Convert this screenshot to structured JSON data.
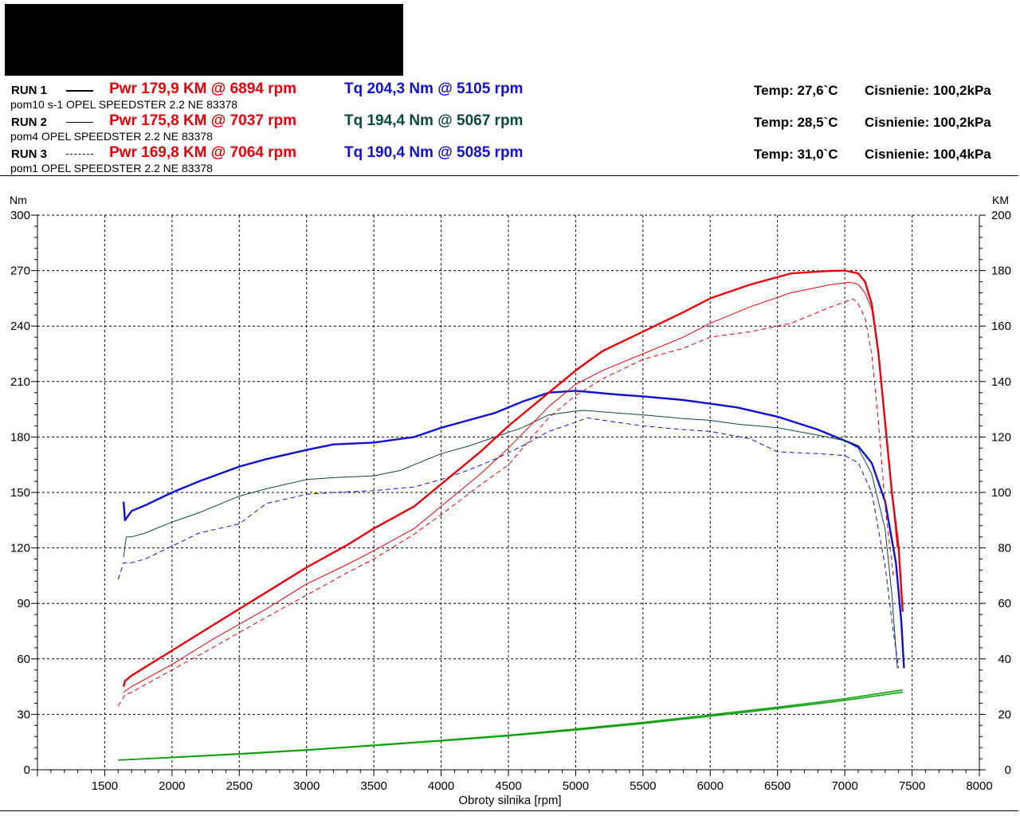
{
  "header": {
    "runs": [
      {
        "label": "RUN 1",
        "legend_style": "solid-thick",
        "pwr": "Pwr  179,9 KM @ 6894 rpm",
        "tq": "Tq 204,3 Nm @ 5105 rpm",
        "tq_color": "#1010d0",
        "temp": "Temp: 27,6`C",
        "pressure": "Cisnienie: 100,2kPa",
        "description": "pom10 s-1 OPEL SPEEDSTER 2.2 NE 83378"
      },
      {
        "label": "RUN 2",
        "legend_style": "solid-thin",
        "pwr": "Pwr  175,8 KM @ 7037 rpm",
        "tq": "Tq 194,4 Nm @ 5067 rpm",
        "tq_color": "#0a4a3a",
        "temp": "Temp: 28,5`C",
        "pressure": "Cisnienie: 100,2kPa",
        "description": "pom4 OPEL SPEEDSTER 2.2 NE 83378"
      },
      {
        "label": "RUN 3",
        "legend_style": "dashed",
        "pwr": "Pwr  169,8 KM @ 7064 rpm",
        "tq": "Tq 190,4 Nm @ 5085 rpm",
        "tq_color": "#1010d0",
        "temp": "Temp: 31,0`C",
        "pressure": "Cisnienie: 100,4kPa",
        "description": "pom1 OPEL SPEEDSTER 2.2 NE 83378"
      }
    ]
  },
  "chart_data": {
    "type": "line",
    "xlabel": "Obroty silnika [rpm]",
    "ylabel_left": "Nm",
    "ylabel_right": "KM",
    "xlim": [
      1000,
      8000
    ],
    "ylim_left": [
      0,
      300
    ],
    "ylim_right": [
      0,
      200
    ],
    "x_ticks": [
      1500,
      2000,
      2500,
      3000,
      3500,
      4000,
      4500,
      5000,
      5500,
      6000,
      6500,
      7000,
      7500,
      8000
    ],
    "y_ticks_left": [
      0,
      30,
      60,
      90,
      120,
      150,
      180,
      210,
      240,
      270,
      300
    ],
    "y_ticks_right": [
      0,
      20,
      40,
      60,
      80,
      100,
      120,
      140,
      160,
      180,
      200
    ],
    "grid": true,
    "colors": {
      "power": "#e8000b",
      "torque": "#1010d0",
      "torque_run2": "#0a4a3a",
      "loss": "#10a010"
    },
    "series": [
      {
        "run": "RUN 1",
        "quantity": "torque",
        "axis": "left",
        "style": "solid-thick",
        "x": [
          1640,
          1650,
          1700,
          1800,
          2000,
          2200,
          2500,
          2700,
          3000,
          3200,
          3500,
          3700,
          3800,
          4000,
          4200,
          4400,
          4600,
          4800,
          5000,
          5105,
          5300,
          5500,
          5800,
          6000,
          6200,
          6500,
          6800,
          7000,
          7100,
          7200,
          7300,
          7380,
          7420,
          7440
        ],
        "y": [
          145,
          135,
          140,
          143,
          150,
          156,
          164,
          168,
          173,
          176,
          177,
          179,
          180,
          185,
          189,
          193,
          199,
          204,
          205,
          204.3,
          203,
          202,
          200,
          198,
          196,
          191,
          184,
          178,
          175,
          166,
          145,
          112,
          80,
          55
        ]
      },
      {
        "run": "RUN 2",
        "quantity": "torque",
        "axis": "left",
        "style": "solid-thin",
        "x": [
          1640,
          1660,
          1700,
          1800,
          2000,
          2200,
          2500,
          2700,
          3000,
          3200,
          3500,
          3700,
          3800,
          4000,
          4200,
          4400,
          4600,
          4800,
          5000,
          5067,
          5300,
          5500,
          5800,
          6000,
          6200,
          6500,
          6800,
          7000,
          7100,
          7200,
          7300,
          7350,
          7390
        ],
        "y": [
          115,
          126,
          126,
          128,
          134,
          139,
          148,
          152,
          157,
          158,
          159,
          162,
          165,
          171,
          175,
          180,
          185,
          192,
          194,
          194.4,
          193,
          192,
          190,
          189,
          187,
          185,
          181,
          178,
          174,
          160,
          130,
          95,
          55
        ]
      },
      {
        "run": "RUN 3",
        "quantity": "torque",
        "axis": "left",
        "style": "dashed",
        "x": [
          1600,
          1640,
          1700,
          1800,
          2000,
          2200,
          2500,
          2700,
          3000,
          3200,
          3500,
          3800,
          4000,
          4200,
          4400,
          4600,
          4800,
          5000,
          5085,
          5300,
          5500,
          5800,
          6000,
          6300,
          6500,
          6800,
          7000,
          7100,
          7200,
          7300,
          7360,
          7400
        ],
        "y": [
          103,
          112,
          112,
          114,
          121,
          128,
          133,
          144,
          149,
          150,
          151,
          153,
          157,
          162,
          168,
          175,
          183,
          188,
          190.4,
          188,
          186,
          184,
          183,
          179,
          172,
          171,
          170,
          166,
          150,
          110,
          75,
          55
        ]
      },
      {
        "run": "RUN 1",
        "quantity": "power",
        "axis": "right",
        "style": "solid-thick",
        "x": [
          1640,
          1650,
          1700,
          2000,
          2300,
          2700,
          3000,
          3300,
          3500,
          3800,
          4000,
          4300,
          4500,
          4800,
          5000,
          5200,
          5500,
          5800,
          6000,
          6300,
          6600,
          6894,
          7000,
          7100,
          7150,
          7200,
          7250,
          7300,
          7350,
          7400,
          7430
        ],
        "y": [
          30,
          32,
          34,
          43,
          52,
          64,
          73,
          81,
          87,
          95,
          103,
          115,
          124,
          136,
          144,
          151,
          158,
          165,
          170,
          175,
          179,
          179.9,
          180,
          179,
          176,
          168,
          150,
          125,
          100,
          80,
          57
        ]
      },
      {
        "run": "RUN 2",
        "quantity": "power",
        "axis": "right",
        "style": "solid-thin",
        "x": [
          1640,
          1700,
          2000,
          2300,
          2700,
          3000,
          3300,
          3500,
          3800,
          4000,
          4300,
          4500,
          4800,
          5000,
          5200,
          5500,
          5800,
          6000,
          6300,
          6600,
          6900,
          7037,
          7100,
          7150,
          7200,
          7250,
          7300,
          7350,
          7390
        ],
        "y": [
          28,
          30,
          38,
          47,
          58,
          67,
          74,
          79,
          87,
          95,
          107,
          116,
          131,
          139,
          144,
          150,
          156,
          161,
          167,
          172,
          175,
          175.8,
          175,
          172,
          166,
          150,
          125,
          100,
          80
        ]
      },
      {
        "run": "RUN 3",
        "quantity": "power",
        "axis": "right",
        "style": "dashed",
        "x": [
          1600,
          1650,
          1700,
          2000,
          2300,
          2700,
          3000,
          3300,
          3500,
          3800,
          4000,
          4300,
          4500,
          4800,
          5000,
          5200,
          5500,
          5800,
          6000,
          6300,
          6600,
          6900,
          7064,
          7100,
          7150,
          7200,
          7250,
          7300,
          7360
        ],
        "y": [
          23,
          27,
          28,
          36,
          44,
          55,
          63,
          71,
          76,
          85,
          92,
          103,
          110,
          127,
          135,
          141,
          148,
          152,
          156,
          158,
          161,
          167,
          169.8,
          168,
          163,
          150,
          125,
          95,
          70
        ]
      },
      {
        "run": "RUN 1",
        "quantity": "loss",
        "axis": "right",
        "style": "solid",
        "x": [
          1600,
          2000,
          2500,
          3000,
          3500,
          4000,
          4500,
          5000,
          5500,
          6000,
          6500,
          7000,
          7430
        ],
        "y": [
          3.5,
          4.5,
          5.8,
          7.2,
          8.9,
          10.6,
          12.5,
          14.7,
          17.1,
          19.8,
          22.6,
          25.6,
          28.8
        ]
      },
      {
        "run": "RUN 2",
        "quantity": "loss",
        "axis": "right",
        "style": "solid",
        "x": [
          1600,
          2000,
          2500,
          3000,
          3500,
          4000,
          4500,
          5000,
          5500,
          6000,
          6500,
          7000,
          7430
        ],
        "y": [
          3.5,
          4.4,
          5.6,
          7.0,
          8.7,
          10.4,
          12.2,
          14.3,
          16.7,
          19.3,
          22.1,
          25.0,
          28.0
        ]
      }
    ]
  }
}
